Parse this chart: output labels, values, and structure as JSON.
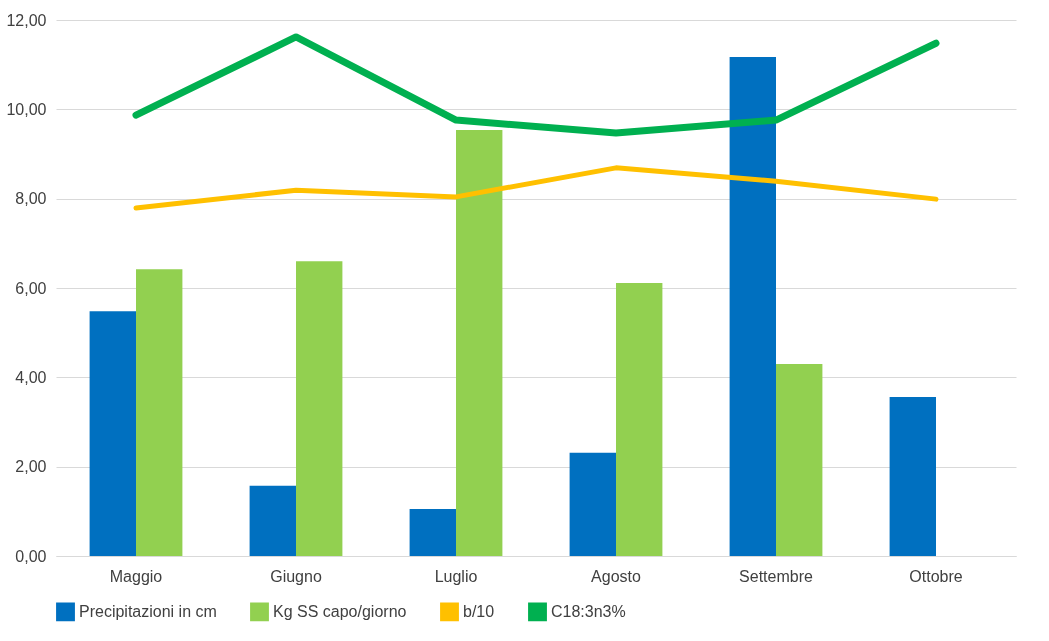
{
  "chart_data": {
    "type": "bar",
    "categories": [
      "Maggio",
      "Giugno",
      "Luglio",
      "Agosto",
      "Settembre",
      "Ottobre"
    ],
    "series": [
      {
        "name": "Precipitazioni in cm",
        "color": "#0070c0",
        "values": [
          5.48,
          1.57,
          1.05,
          2.31,
          11.17,
          3.56
        ]
      },
      {
        "name": "Kg SS capo/giorno",
        "color": "#92d050",
        "values": [
          6.42,
          6.6,
          9.54,
          6.11,
          4.3,
          null
        ]
      },
      {
        "name": "b/10",
        "type": "line",
        "color": "#ffc000",
        "values": [
          7.79,
          8.19,
          8.04,
          8.69,
          8.39,
          7.99
        ]
      },
      {
        "name": "C18:3n3%",
        "type": "line",
        "color": "#00b050",
        "values": [
          9.87,
          11.62,
          9.76,
          9.47,
          9.76,
          11.48
        ]
      }
    ],
    "ylim": [
      0,
      12
    ],
    "yticks": [
      {
        "value": 0,
        "label": "0,00"
      },
      {
        "value": 2,
        "label": "2,00"
      },
      {
        "value": 4,
        "label": "4,00"
      },
      {
        "value": 6,
        "label": "6,00"
      },
      {
        "value": 8,
        "label": "8,00"
      },
      {
        "value": 10,
        "label": "10,00"
      },
      {
        "value": 12,
        "label": "12,00"
      }
    ],
    "grid": "y",
    "legend": "bottom",
    "marker": "none"
  }
}
